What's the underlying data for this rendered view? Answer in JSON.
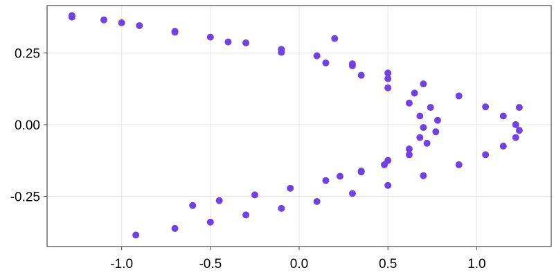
{
  "chart_data": {
    "type": "scatter",
    "title": "",
    "xlabel": "",
    "ylabel": "",
    "xlim": [
      -1.42,
      1.42
    ],
    "ylim": [
      -0.425,
      0.415
    ],
    "grid": true,
    "legend": "none",
    "marker_color": "#6e42e3",
    "x_ticks": [
      {
        "value": -1.0,
        "label": "-1.0"
      },
      {
        "value": -0.5,
        "label": "-0.5"
      },
      {
        "value": 0.0,
        "label": "0.0"
      },
      {
        "value": 0.5,
        "label": "0.5"
      },
      {
        "value": 1.0,
        "label": "1.0"
      }
    ],
    "y_ticks": [
      {
        "value": 0.25,
        "label": "0.25"
      },
      {
        "value": 0.0,
        "label": "0.00"
      },
      {
        "value": -0.25,
        "label": "-0.25"
      }
    ],
    "series": [
      {
        "points": [
          [
            -1.28,
            0.38
          ],
          [
            -1.1,
            0.365
          ],
          [
            -0.9,
            0.345
          ],
          [
            -0.7,
            0.325
          ],
          [
            -0.5,
            0.305
          ],
          [
            -0.3,
            0.285
          ],
          [
            -0.1,
            0.262
          ],
          [
            0.1,
            0.24
          ],
          [
            0.3,
            0.212
          ],
          [
            0.5,
            0.18
          ],
          [
            0.7,
            0.142
          ],
          [
            0.9,
            0.1
          ],
          [
            1.05,
            0.062
          ],
          [
            1.15,
            0.03
          ],
          [
            1.22,
            0.0
          ],
          [
            1.24,
            -0.02
          ],
          [
            1.22,
            -0.045
          ],
          [
            1.15,
            -0.075
          ],
          [
            1.05,
            -0.105
          ],
          [
            0.9,
            -0.14
          ],
          [
            0.7,
            -0.178
          ],
          [
            0.5,
            -0.212
          ],
          [
            0.3,
            -0.24
          ],
          [
            0.1,
            -0.268
          ],
          [
            -0.1,
            -0.292
          ],
          [
            -0.3,
            -0.315
          ],
          [
            -0.5,
            -0.34
          ],
          [
            -0.7,
            -0.362
          ],
          [
            -0.92,
            -0.385
          ],
          [
            -1.28,
            0.375
          ],
          [
            -1.0,
            0.355
          ],
          [
            -0.7,
            0.322
          ],
          [
            -0.4,
            0.288
          ],
          [
            -0.1,
            0.252
          ],
          [
            0.15,
            0.215
          ],
          [
            0.35,
            0.172
          ],
          [
            0.5,
            0.128
          ],
          [
            0.62,
            0.075
          ],
          [
            0.68,
            0.03
          ],
          [
            0.7,
            -0.01
          ],
          [
            0.68,
            -0.045
          ],
          [
            0.62,
            -0.085
          ],
          [
            0.5,
            -0.125
          ],
          [
            0.35,
            -0.162
          ],
          [
            0.15,
            -0.195
          ],
          [
            -0.05,
            -0.222
          ],
          [
            -0.25,
            -0.245
          ],
          [
            -0.45,
            -0.265
          ],
          [
            -0.6,
            -0.282
          ],
          [
            0.1,
            0.24
          ],
          [
            0.3,
            0.205
          ],
          [
            0.5,
            0.16
          ],
          [
            0.65,
            0.11
          ],
          [
            0.74,
            0.06
          ],
          [
            0.78,
            0.015
          ],
          [
            0.77,
            -0.025
          ],
          [
            0.72,
            -0.065
          ],
          [
            0.62,
            -0.105
          ],
          [
            0.48,
            -0.14
          ],
          [
            0.35,
            -0.165
          ],
          [
            0.23,
            -0.18
          ],
          [
            0.2,
            0.3
          ],
          [
            1.24,
            0.06
          ]
        ]
      }
    ]
  }
}
